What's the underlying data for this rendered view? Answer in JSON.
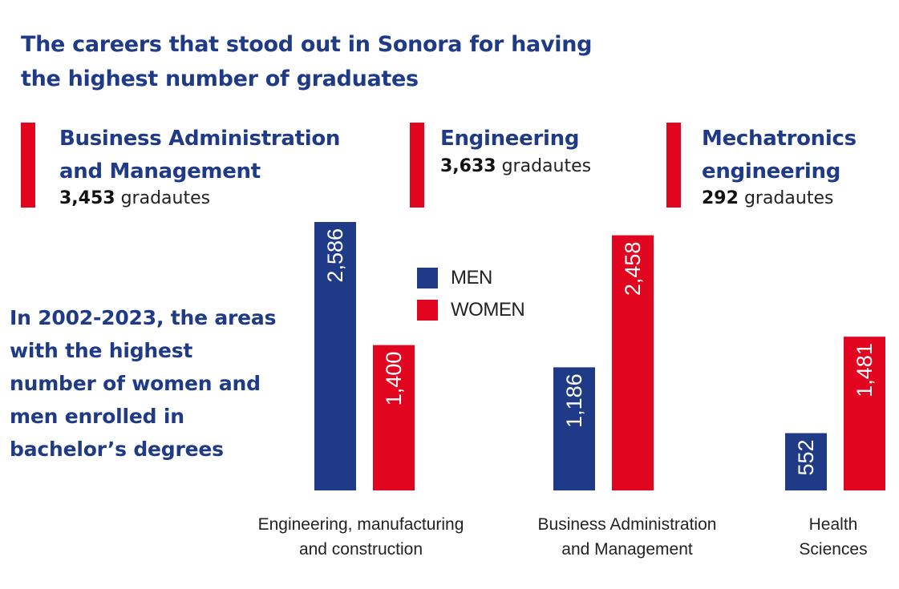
{
  "title": "The careers that stood out in Sonora for having the highest number of graduates",
  "highlights": [
    {
      "name_lines": [
        "Business Administration",
        "and Management"
      ],
      "count": "3,453",
      "unit": "gradautes"
    },
    {
      "name_lines": [
        "Engineering"
      ],
      "count": "3,633",
      "unit": "gradautes"
    },
    {
      "name_lines": [
        "Mechatronics",
        "engineering"
      ],
      "count": "292",
      "unit": "gradautes"
    }
  ],
  "subtitle": "In 2002-2023, the areas with the highest number of women and men enrolled in bachelor’s degrees",
  "colors": {
    "title": "#1f3a87",
    "men": "#1f3a87",
    "women": "#e1051f",
    "accent_bar": "#e1051f"
  },
  "chart_data": {
    "type": "bar",
    "title": "In 2002-2023, the areas with the highest number of women and men enrolled in bachelor’s degrees",
    "categories": [
      [
        "Engineering, manufacturing",
        "and construction"
      ],
      [
        "Business Administration",
        "and Management"
      ],
      [
        "Health",
        "Sciences"
      ]
    ],
    "series": [
      {
        "name": "MEN",
        "color": "#1f3a87",
        "values": [
          2586,
          1186,
          552
        ],
        "labels": [
          "2,586",
          "1,186",
          "552"
        ]
      },
      {
        "name": "WOMEN",
        "color": "#e1051f",
        "values": [
          1400,
          2458,
          1481
        ],
        "labels": [
          "1,400",
          "2,458",
          "1,481"
        ]
      }
    ],
    "legend": {
      "items": [
        "MEN",
        "WOMEN"
      ],
      "placement": "top-center"
    },
    "xlabel": "",
    "ylabel": "",
    "ylim": [
      0,
      2586
    ],
    "grid": false,
    "data_labels": "inside-rotated"
  }
}
